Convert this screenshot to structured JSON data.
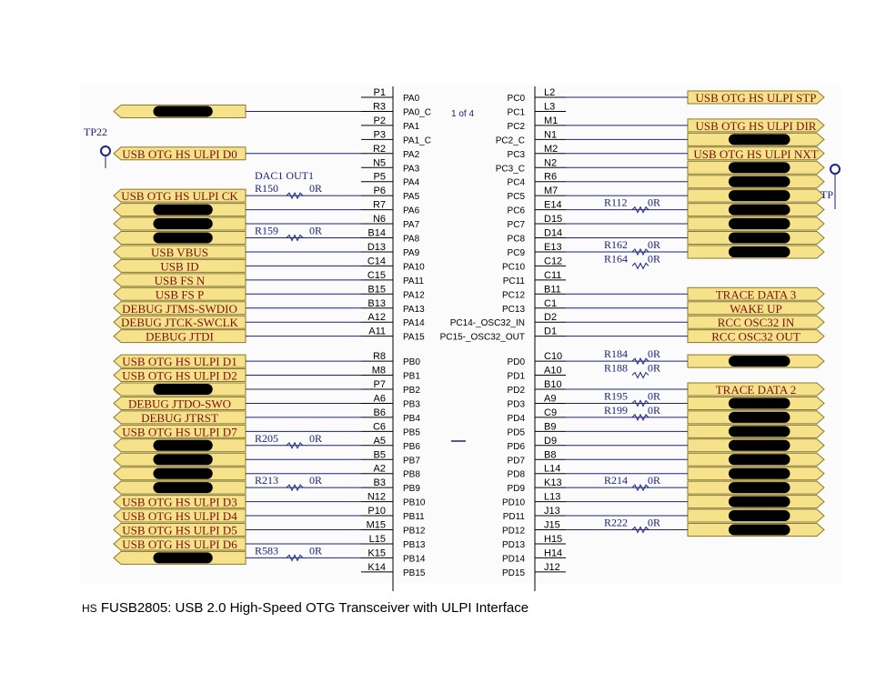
{
  "caption": {
    "prefix": "HS",
    "text": " FUSB2805: USB 2.0 High-Speed OTG Transceiver with ULPI Interface"
  },
  "colors": {
    "wire": "#1a237e",
    "port_fill": "#f5e28a",
    "port_stroke": "#8a7a2a",
    "port_text": "#7a1010",
    "redact": "#000000",
    "chip_pin_text": "#000000",
    "net_text": "#1a237e"
  },
  "chip": {
    "page_label": "1 of 4"
  },
  "test_points": [
    {
      "label": "TP22"
    },
    {
      "label": "TP"
    }
  ],
  "left_ports": [
    {
      "label": "",
      "redacted": true
    },
    {
      "label": "USB OTG HS ULPI D0",
      "redacted": false
    },
    {
      "label": "USB OTG HS ULPI CK",
      "redacted": false
    },
    {
      "label": "",
      "redacted": true
    },
    {
      "label": "",
      "redacted": true
    },
    {
      "label": "",
      "redacted": true
    },
    {
      "label": "USB VBUS",
      "redacted": false
    },
    {
      "label": "USB ID",
      "redacted": false
    },
    {
      "label": "USB FS N",
      "redacted": false
    },
    {
      "label": "USB FS P",
      "redacted": false
    },
    {
      "label": "DEBUG JTMS-SWDIO",
      "redacted": false
    },
    {
      "label": "DEBUG JTCK-SWCLK",
      "redacted": false
    },
    {
      "label": "DEBUG JTDI",
      "redacted": false
    },
    {
      "label": "USB OTG HS ULPI D1",
      "redacted": false
    },
    {
      "label": "USB OTG HS ULPI D2",
      "redacted": false
    },
    {
      "label": "",
      "redacted": true
    },
    {
      "label": "DEBUG JTDO-SWO",
      "redacted": false
    },
    {
      "label": "DEBUG JTRST",
      "redacted": false
    },
    {
      "label": "USB OTG HS ULPI D7",
      "redacted": false
    },
    {
      "label": "",
      "redacted": true
    },
    {
      "label": "",
      "redacted": true
    },
    {
      "label": "",
      "redacted": true
    },
    {
      "label": "",
      "redacted": true
    },
    {
      "label": "USB OTG HS ULPI D3",
      "redacted": false
    },
    {
      "label": "USB OTG HS ULPI D4",
      "redacted": false
    },
    {
      "label": "USB OTG HS ULPI D5",
      "redacted": false
    },
    {
      "label": "USB OTG HS ULPI D6",
      "redacted": false
    },
    {
      "label": "",
      "redacted": true
    }
  ],
  "right_ports": [
    {
      "label": "USB OTG HS ULPI STP",
      "redacted": false
    },
    {
      "label": "USB OTG HS ULPI DIR",
      "redacted": false
    },
    {
      "label": "",
      "redacted": true
    },
    {
      "label": "USB OTG HS ULPI NXT",
      "redacted": false
    },
    {
      "label": "",
      "redacted": true
    },
    {
      "label": "",
      "redacted": true
    },
    {
      "label": "",
      "redacted": true
    },
    {
      "label": "",
      "redacted": true
    },
    {
      "label": "",
      "redacted": true
    },
    {
      "label": "",
      "redacted": true
    },
    {
      "label": "",
      "redacted": true
    },
    {
      "label": "TRACE DATA 3",
      "redacted": false
    },
    {
      "label": "WAKE UP",
      "redacted": false
    },
    {
      "label": "RCC OSC32 IN",
      "redacted": false
    },
    {
      "label": "RCC OSC32 OUT",
      "redacted": false
    },
    {
      "label": "",
      "redacted": true
    },
    {
      "label": "TRACE DATA 2",
      "redacted": false
    },
    {
      "label": "",
      "redacted": true
    },
    {
      "label": "",
      "redacted": true
    },
    {
      "label": "",
      "redacted": true
    },
    {
      "label": "",
      "redacted": true
    },
    {
      "label": "",
      "redacted": true
    },
    {
      "label": "",
      "redacted": true
    },
    {
      "label": "",
      "redacted": true
    },
    {
      "label": "",
      "redacted": true
    },
    {
      "label": "",
      "redacted": true
    },
    {
      "label": "",
      "redacted": true
    }
  ],
  "left_pins": [
    {
      "num": "P1",
      "name": "PA0"
    },
    {
      "num": "R3",
      "name": "PA0_C"
    },
    {
      "num": "P2",
      "name": "PA1"
    },
    {
      "num": "P3",
      "name": "PA1_C"
    },
    {
      "num": "R2",
      "name": "PA2"
    },
    {
      "num": "N5",
      "name": "PA3"
    },
    {
      "num": "P5",
      "name": "PA4"
    },
    {
      "num": "P6",
      "name": "PA5"
    },
    {
      "num": "R7",
      "name": "PA6"
    },
    {
      "num": "N6",
      "name": "PA7"
    },
    {
      "num": "B14",
      "name": "PA8"
    },
    {
      "num": "D13",
      "name": "PA9"
    },
    {
      "num": "C14",
      "name": "PA10"
    },
    {
      "num": "C15",
      "name": "PA11"
    },
    {
      "num": "B15",
      "name": "PA12"
    },
    {
      "num": "B13",
      "name": "PA13"
    },
    {
      "num": "A12",
      "name": "PA14"
    },
    {
      "num": "A11",
      "name": "PA15"
    },
    {
      "num": "R8",
      "name": "PB0"
    },
    {
      "num": "M8",
      "name": "PB1"
    },
    {
      "num": "P7",
      "name": "PB2"
    },
    {
      "num": "A6",
      "name": "PB3"
    },
    {
      "num": "B6",
      "name": "PB4"
    },
    {
      "num": "C6",
      "name": "PB5"
    },
    {
      "num": "A5",
      "name": "PB6"
    },
    {
      "num": "B5",
      "name": "PB7"
    },
    {
      "num": "A2",
      "name": "PB8"
    },
    {
      "num": "B3",
      "name": "PB9"
    },
    {
      "num": "N12",
      "name": "PB10"
    },
    {
      "num": "P10",
      "name": "PB11"
    },
    {
      "num": "M15",
      "name": "PB12"
    },
    {
      "num": "L15",
      "name": "PB13"
    },
    {
      "num": "K15",
      "name": "PB14"
    },
    {
      "num": "K14",
      "name": "PB15"
    }
  ],
  "right_pins": [
    {
      "num": "L2",
      "name": "PC0"
    },
    {
      "num": "L3",
      "name": "PC1"
    },
    {
      "num": "M1",
      "name": "PC2"
    },
    {
      "num": "N1",
      "name": "PC2_C"
    },
    {
      "num": "M2",
      "name": "PC3"
    },
    {
      "num": "N2",
      "name": "PC3_C"
    },
    {
      "num": "R6",
      "name": "PC4"
    },
    {
      "num": "M7",
      "name": "PC5"
    },
    {
      "num": "E14",
      "name": "PC6"
    },
    {
      "num": "D15",
      "name": "PC7"
    },
    {
      "num": "D14",
      "name": "PC8"
    },
    {
      "num": "E13",
      "name": "PC9"
    },
    {
      "num": "C12",
      "name": "PC10"
    },
    {
      "num": "C11",
      "name": "PC11"
    },
    {
      "num": "B11",
      "name": "PC12"
    },
    {
      "num": "C1",
      "name": "PC13"
    },
    {
      "num": "D2",
      "name": "PC14-_OSC32_IN"
    },
    {
      "num": "D1",
      "name": "PC15-_OSC32_OUT"
    },
    {
      "num": "C10",
      "name": "PD0"
    },
    {
      "num": "A10",
      "name": "PD1"
    },
    {
      "num": "B10",
      "name": "PD2"
    },
    {
      "num": "A9",
      "name": "PD3"
    },
    {
      "num": "C9",
      "name": "PD4"
    },
    {
      "num": "B9",
      "name": "PD5"
    },
    {
      "num": "D9",
      "name": "PD6"
    },
    {
      "num": "B8",
      "name": "PD7"
    },
    {
      "num": "L14",
      "name": "PD8"
    },
    {
      "num": "K13",
      "name": "PD9"
    },
    {
      "num": "L13",
      "name": "PD10"
    },
    {
      "num": "J13",
      "name": "PD11"
    },
    {
      "num": "J15",
      "name": "PD12"
    },
    {
      "num": "H15",
      "name": "PD13"
    },
    {
      "num": "H14",
      "name": "PD14"
    },
    {
      "num": "J12",
      "name": "PD15"
    }
  ],
  "left_resistors": [
    {
      "ref": "R150",
      "value": "0R"
    },
    {
      "ref": "R159",
      "value": "0R"
    },
    {
      "ref": "R205",
      "value": "0R"
    },
    {
      "ref": "R213",
      "value": "0R"
    },
    {
      "ref": "R583",
      "value": "0R"
    }
  ],
  "right_resistors": [
    {
      "ref": "R112",
      "value": "0R"
    },
    {
      "ref": "R162",
      "value": "0R"
    },
    {
      "ref": "R164",
      "value": "0R"
    },
    {
      "ref": "R184",
      "value": "0R"
    },
    {
      "ref": "R188",
      "value": "0R"
    },
    {
      "ref": "R195",
      "value": "0R"
    },
    {
      "ref": "R199",
      "value": "0R"
    },
    {
      "ref": "R214",
      "value": "0R"
    },
    {
      "ref": "R222",
      "value": "0R"
    }
  ],
  "net_labels": [
    {
      "label": "DAC1 OUT1"
    }
  ]
}
